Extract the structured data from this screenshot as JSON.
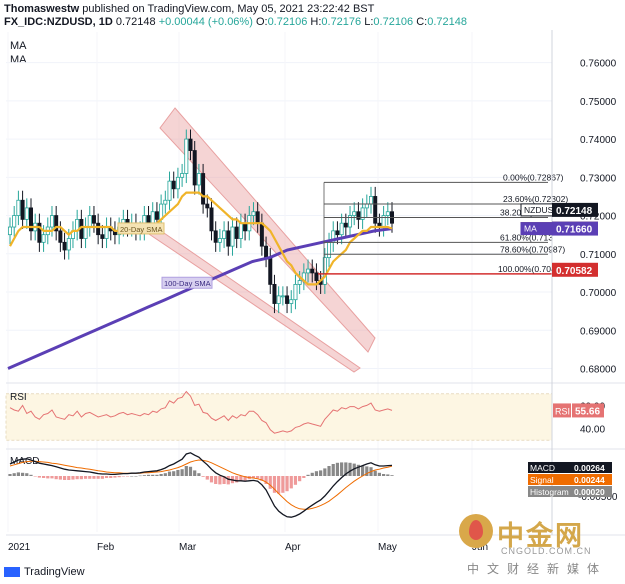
{
  "header": {
    "author": "Thomaswestw",
    "published": "published on TradingView.com, May 05, 2021 23:22:42 BST",
    "symbol": "FX_IDC:NZDUSD, 1D",
    "last": "0.72148",
    "change": "+0.00044 (+0.06%)",
    "o_label": "O:",
    "o": "0.72106",
    "h_label": "H:",
    "h": "0.72176",
    "l_label": "L:",
    "l": "0.72106",
    "c_label": "C:",
    "c": "0.72148",
    "ma1": "MA",
    "ma2": "MA"
  },
  "footer": {
    "brand": "TradingView"
  },
  "watermark": {
    "cn": "中金网",
    "en": "CNGOLD.COM.CN",
    "sub": "中文财经新媒体"
  },
  "colors": {
    "up": "#26a69a",
    "down": "#131722",
    "ma20": "#f0b429",
    "ma100": "#5b3fb5",
    "channel": "#e8a0a0",
    "fib": "#555555",
    "fib_red": "#d32f2f",
    "rsi": "#e57373",
    "macd": "#131722",
    "signal": "#ef6c00",
    "hist_pos": "#888888",
    "hist_neg": "#ef9a9a"
  },
  "chart_data": [
    {
      "type": "candlestick",
      "title": "FX_IDC:NZDUSD, 1D",
      "x_ticks": [
        "2021",
        "Feb",
        "Mar",
        "Apr",
        "May",
        "Jun"
      ],
      "y_ticks": [
        "0.76000",
        "0.75000",
        "0.74000",
        "0.73000",
        "0.72000",
        "0.71000",
        "0.70000",
        "0.69000",
        "0.68000"
      ],
      "ylim": [
        0.677,
        0.768
      ],
      "close_path": [
        0.717,
        0.72,
        0.724,
        0.719,
        0.722,
        0.716,
        0.718,
        0.713,
        0.715,
        0.717,
        0.72,
        0.716,
        0.713,
        0.711,
        0.714,
        0.716,
        0.719,
        0.714,
        0.717,
        0.72,
        0.718,
        0.715,
        0.714,
        0.717,
        0.716,
        0.715,
        0.717,
        0.719,
        0.717,
        0.718,
        0.716,
        0.716,
        0.72,
        0.718,
        0.721,
        0.719,
        0.723,
        0.724,
        0.729,
        0.727,
        0.73,
        0.731,
        0.74,
        0.737,
        0.728,
        0.731,
        0.723,
        0.722,
        0.716,
        0.713,
        0.714,
        0.716,
        0.712,
        0.717,
        0.714,
        0.718,
        0.716,
        0.72,
        0.721,
        0.718,
        0.712,
        0.709,
        0.702,
        0.697,
        0.699,
        0.699,
        0.697,
        0.698,
        0.702,
        0.703,
        0.705,
        0.706,
        0.705,
        0.703,
        0.702,
        0.709,
        0.713,
        0.716,
        0.715,
        0.718,
        0.717,
        0.72,
        0.721,
        0.719,
        0.722,
        0.723,
        0.725,
        0.718,
        0.717,
        0.72,
        0.721,
        0.718
      ],
      "ma20_path": [
        0.712,
        0.714,
        0.716,
        0.717,
        0.717,
        0.717,
        0.717,
        0.717,
        0.716,
        0.716,
        0.716,
        0.717,
        0.717,
        0.716,
        0.715,
        0.716,
        0.716,
        0.717,
        0.717,
        0.717,
        0.717,
        0.717,
        0.717,
        0.717,
        0.717,
        0.716,
        0.716,
        0.717,
        0.717,
        0.717,
        0.717,
        0.717,
        0.717,
        0.717,
        0.717,
        0.718,
        0.719,
        0.72,
        0.721,
        0.722,
        0.723,
        0.725,
        0.726,
        0.726,
        0.726,
        0.726,
        0.725,
        0.725,
        0.724,
        0.723,
        0.722,
        0.721,
        0.72,
        0.719,
        0.719,
        0.718,
        0.718,
        0.718,
        0.718,
        0.718,
        0.718,
        0.717,
        0.716,
        0.714,
        0.712,
        0.71,
        0.708,
        0.707,
        0.705,
        0.704,
        0.703,
        0.702,
        0.702,
        0.702,
        0.703,
        0.704,
        0.706,
        0.708,
        0.709,
        0.71,
        0.711,
        0.713,
        0.714,
        0.715,
        0.716,
        0.716,
        0.717,
        0.717,
        0.717,
        0.717,
        0.717,
        0.7166
      ],
      "ma100_path": [
        0.68,
        0.682,
        0.684,
        0.686,
        0.688,
        0.69,
        0.692,
        0.694,
        0.696,
        0.698,
        0.7,
        0.702,
        0.704,
        0.706,
        0.708,
        0.709,
        0.711,
        0.712,
        0.713,
        0.714,
        0.715,
        0.716,
        0.7166
      ],
      "fib_levels": [
        {
          "label": "0.00%(0.72867)",
          "value": 0.72867
        },
        {
          "label": "23.60%(0.72302)",
          "value": 0.72302
        },
        {
          "label": "38.20%(0.7195",
          "value": 0.7195
        },
        {
          "label": "61.80%(0.713",
          "value": 0.713
        },
        {
          "label": "78.60%(0.70987)",
          "value": 0.70987
        },
        {
          "label": "100.00%(0.70475)",
          "value": 0.70475
        }
      ],
      "annotations": {
        "ma20": "20-Day SMA",
        "ma100": "100-Day SMA"
      },
      "price_tags": [
        {
          "text": "NZDUSD",
          "value": "0.72148",
          "y": 0.72148,
          "color": "#131722"
        },
        {
          "text": "MA",
          "value": "0.71662",
          "y": 0.71662,
          "color": "#f0b429"
        },
        {
          "text": "MA",
          "value": "0.71660",
          "y": 0.7166,
          "color": "#5b3fb5"
        },
        {
          "text": "",
          "value": "0.70582",
          "y": 0.70582,
          "color": "#d32f2f"
        }
      ]
    },
    {
      "type": "line",
      "title": "RSI",
      "y_ticks": [
        "60.00",
        "40.00"
      ],
      "ylim": [
        25,
        75
      ],
      "band": [
        30,
        70
      ],
      "values": [
        58,
        56,
        55,
        60,
        53,
        55,
        50,
        48,
        52,
        53,
        56,
        50,
        49,
        48,
        52,
        51,
        55,
        50,
        53,
        54,
        52,
        50,
        51,
        52,
        50,
        51,
        53,
        54,
        52,
        53,
        52,
        51,
        53,
        52,
        55,
        54,
        57,
        58,
        64,
        62,
        66,
        67,
        72,
        68,
        60,
        61,
        54,
        53,
        49,
        47,
        49,
        51,
        47,
        51,
        49,
        52,
        51,
        55,
        55,
        52,
        47,
        45,
        39,
        36,
        37,
        38,
        37,
        38,
        41,
        42,
        44,
        45,
        44,
        43,
        42,
        48,
        52,
        56,
        55,
        58,
        57,
        59,
        59,
        57,
        59,
        60,
        62,
        56,
        55,
        56,
        57,
        55.66
      ],
      "last_label": "RSI",
      "last_value": "55.66"
    },
    {
      "type": "line",
      "title": "MACD",
      "ylim": [
        -0.014,
        0.006
      ],
      "y_ticks": [
        "-0.00500"
      ],
      "series": [
        {
          "name": "MACD",
          "value": "0.00264"
        },
        {
          "name": "Signal",
          "value": "0.00244"
        },
        {
          "name": "Histogram",
          "value": "0.00020"
        }
      ],
      "macd_path": [
        0.003,
        0.0035,
        0.004,
        0.0042,
        0.0043,
        0.004,
        0.0036,
        0.0032,
        0.003,
        0.0028,
        0.0026,
        0.0023,
        0.002,
        0.0017,
        0.0015,
        0.0014,
        0.0013,
        0.0012,
        0.0011,
        0.001,
        0.0008,
        0.0006,
        0.0005,
        0.0005,
        0.0004,
        0.0004,
        0.0005,
        0.0006,
        0.0006,
        0.0007,
        0.0007,
        0.0008,
        0.001,
        0.0011,
        0.0012,
        0.0013,
        0.0016,
        0.002,
        0.0026,
        0.003,
        0.0036,
        0.0042,
        0.0055,
        0.0058,
        0.0052,
        0.0047,
        0.0037,
        0.0028,
        0.0017,
        0.0008,
        0.0002,
        -0.0002,
        -0.0008,
        -0.001,
        -0.0012,
        -0.0012,
        -0.0013,
        -0.0012,
        -0.0011,
        -0.0013,
        -0.0022,
        -0.0035,
        -0.0055,
        -0.0075,
        -0.0088,
        -0.0096,
        -0.0102,
        -0.0103,
        -0.01,
        -0.0095,
        -0.0088,
        -0.008,
        -0.0073,
        -0.0066,
        -0.006,
        -0.005,
        -0.0038,
        -0.0025,
        -0.0014,
        -0.0004,
        0.0005,
        0.0012,
        0.0018,
        0.0022,
        0.0026,
        0.003,
        0.0033,
        0.0028,
        0.0025,
        0.0025,
        0.0026,
        0.00264
      ],
      "signal_path": [
        0.0025,
        0.0028,
        0.0031,
        0.0034,
        0.0036,
        0.0037,
        0.0037,
        0.0036,
        0.0035,
        0.0034,
        0.0032,
        0.0031,
        0.0029,
        0.0027,
        0.0025,
        0.0023,
        0.0021,
        0.002,
        0.0018,
        0.0017,
        0.0015,
        0.0013,
        0.0012,
        0.001,
        0.0009,
        0.0008,
        0.0008,
        0.0007,
        0.0007,
        0.0007,
        0.0007,
        0.0007,
        0.0008,
        0.0008,
        0.0009,
        0.001,
        0.0011,
        0.0013,
        0.0015,
        0.0018,
        0.0021,
        0.0025,
        0.003,
        0.0035,
        0.0038,
        0.004,
        0.0039,
        0.0037,
        0.0033,
        0.0028,
        0.0023,
        0.0018,
        0.0013,
        0.0008,
        0.0004,
        0.0001,
        -0.0002,
        -0.0004,
        -0.0005,
        -0.0007,
        -0.001,
        -0.0015,
        -0.0023,
        -0.0033,
        -0.0044,
        -0.0054,
        -0.0064,
        -0.0072,
        -0.0078,
        -0.0082,
        -0.0083,
        -0.0083,
        -0.0081,
        -0.0078,
        -0.0074,
        -0.0069,
        -0.0063,
        -0.0055,
        -0.0047,
        -0.0038,
        -0.0029,
        -0.0021,
        -0.0013,
        -0.0006,
        0.0,
        0.0006,
        0.0011,
        0.0015,
        0.0017,
        0.002,
        0.0022,
        0.00244
      ]
    }
  ]
}
